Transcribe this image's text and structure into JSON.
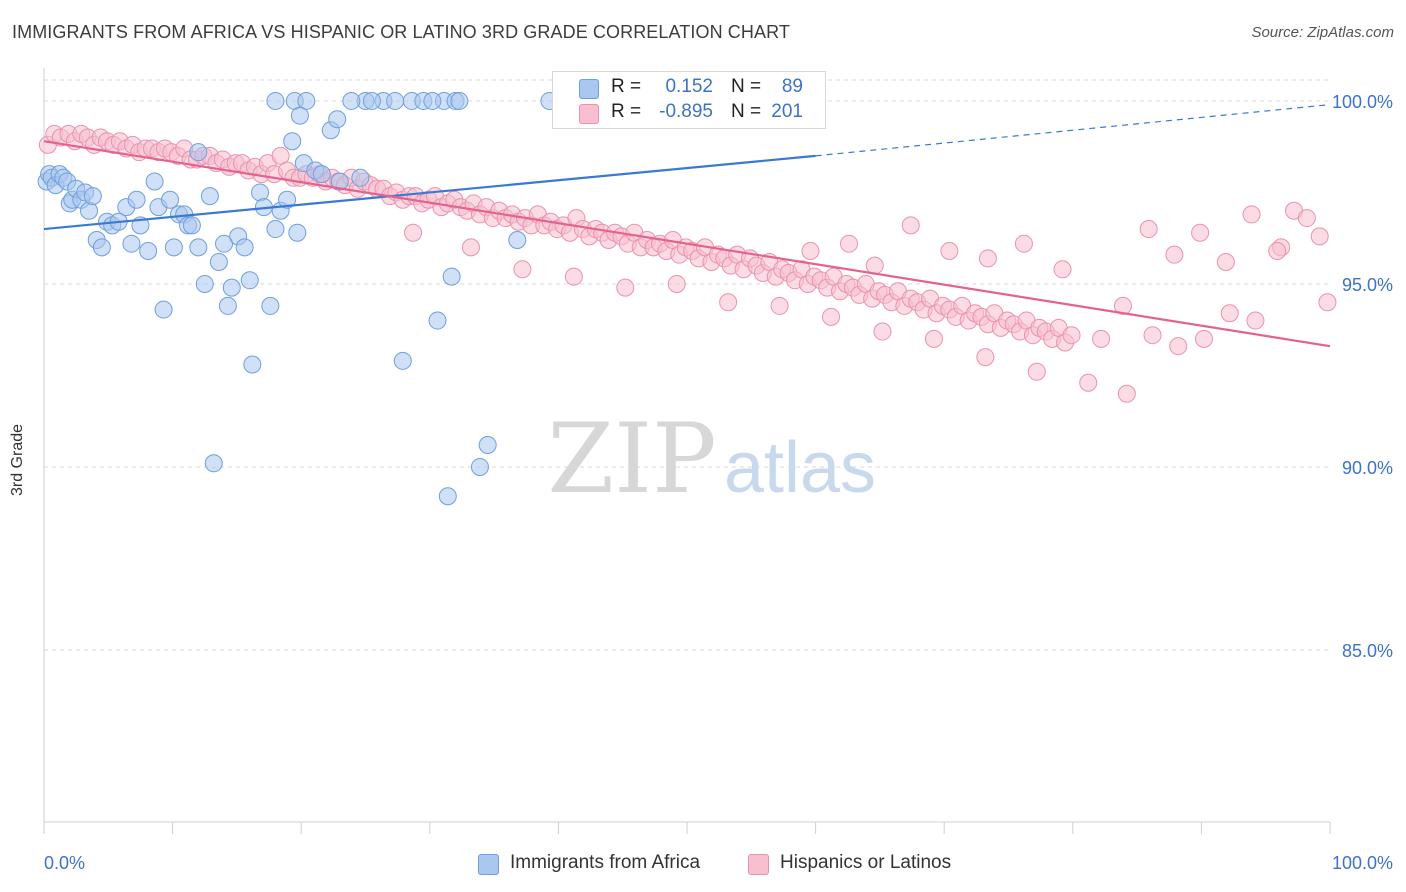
{
  "header": {
    "title": "IMMIGRANTS FROM AFRICA VS HISPANIC OR LATINO 3RD GRADE CORRELATION CHART",
    "source": "Source: ZipAtlas.com"
  },
  "watermark": {
    "zip": "ZIP",
    "atlas": "atlas"
  },
  "legend": {
    "r_label": "R =",
    "n_label": "N =",
    "series": [
      {
        "r": "0.152",
        "n": "89"
      },
      {
        "r": "-0.895",
        "n": "201"
      }
    ]
  },
  "bottom_legend": [
    "Immigrants from Africa",
    "Hispanics or Latinos"
  ],
  "colors": {
    "blue_fill": "#a9c7ef",
    "blue_stroke": "#6e9fde",
    "blue_line": "#3a78d6",
    "pink_fill": "#f7bfd0",
    "pink_stroke": "#ec91ae",
    "pink_line": "#e4628e",
    "axis_text": "#3e72c8",
    "grid": "#d9d9d9"
  },
  "chart_data": {
    "type": "scatter",
    "title": "IMMIGRANTS FROM AFRICA VS HISPANIC OR LATINO 3RD GRADE CORRELATION CHART",
    "ylabel": "3rd Grade",
    "xlabel": "",
    "x_tick_labels": [
      "0.0%",
      "100.0%"
    ],
    "y_tick_labels": [
      "100.0%",
      "95.0%",
      "90.0%",
      "85.0%"
    ],
    "xlim": [
      0,
      100
    ],
    "ylim": [
      80.3,
      100.9
    ],
    "y_ticks": [
      100,
      95,
      90,
      85
    ],
    "grid": true,
    "legend_position": "top-center",
    "series": [
      {
        "name": "Immigrants from Africa",
        "r": 0.152,
        "n": 89,
        "trend": {
          "x0": 0,
          "y0": 96.5,
          "x1": 60,
          "y1": 98.5,
          "dashed_to_x": 100,
          "dashed_to_y": 99.9
        },
        "points": [
          [
            0.2,
            97.8
          ],
          [
            0.4,
            98.0
          ],
          [
            0.6,
            97.9
          ],
          [
            0.9,
            97.7
          ],
          [
            1.2,
            98.0
          ],
          [
            1.5,
            97.9
          ],
          [
            1.8,
            97.8
          ],
          [
            2.0,
            97.2
          ],
          [
            2.2,
            97.3
          ],
          [
            2.5,
            97.6
          ],
          [
            2.9,
            97.3
          ],
          [
            3.2,
            97.5
          ],
          [
            3.5,
            97.0
          ],
          [
            3.8,
            97.4
          ],
          [
            4.1,
            96.2
          ],
          [
            4.5,
            96.0
          ],
          [
            4.9,
            96.7
          ],
          [
            5.3,
            96.6
          ],
          [
            5.8,
            96.7
          ],
          [
            6.4,
            97.1
          ],
          [
            6.8,
            96.1
          ],
          [
            7.2,
            97.3
          ],
          [
            7.5,
            96.6
          ],
          [
            8.1,
            95.9
          ],
          [
            8.6,
            97.8
          ],
          [
            8.9,
            97.1
          ],
          [
            9.3,
            94.3
          ],
          [
            9.8,
            97.3
          ],
          [
            10.1,
            96.0
          ],
          [
            10.5,
            96.9
          ],
          [
            10.9,
            96.9
          ],
          [
            11.2,
            96.6
          ],
          [
            11.5,
            96.6
          ],
          [
            12.0,
            96.0
          ],
          [
            12.5,
            95.0
          ],
          [
            12.9,
            97.4
          ],
          [
            13.2,
            90.1
          ],
          [
            13.6,
            95.6
          ],
          [
            14.0,
            96.1
          ],
          [
            14.3,
            94.4
          ],
          [
            14.6,
            94.9
          ],
          [
            15.1,
            96.3
          ],
          [
            15.6,
            96.0
          ],
          [
            16.0,
            95.1
          ],
          [
            16.2,
            92.8
          ],
          [
            16.8,
            97.5
          ],
          [
            17.1,
            97.1
          ],
          [
            17.6,
            94.4
          ],
          [
            18.0,
            96.5
          ],
          [
            18.4,
            97.0
          ],
          [
            18.9,
            97.3
          ],
          [
            19.3,
            98.9
          ],
          [
            19.7,
            96.4
          ],
          [
            20.2,
            98.3
          ],
          [
            21.1,
            98.1
          ],
          [
            21.6,
            98.0
          ],
          [
            22.3,
            99.2
          ],
          [
            23.0,
            97.8
          ],
          [
            24.6,
            97.9
          ],
          [
            25.0,
            100.0
          ],
          [
            26.4,
            100.0
          ],
          [
            27.3,
            100.0
          ],
          [
            28.6,
            100.0
          ],
          [
            29.5,
            100.0
          ],
          [
            30.6,
            94.0
          ],
          [
            31.1,
            100.0
          ],
          [
            32.0,
            100.0
          ],
          [
            32.3,
            100.0
          ],
          [
            30.2,
            100.0
          ],
          [
            31.7,
            95.2
          ],
          [
            27.9,
            92.9
          ],
          [
            31.4,
            89.2
          ],
          [
            33.9,
            90.0
          ],
          [
            34.5,
            90.6
          ],
          [
            36.8,
            96.2
          ],
          [
            39.3,
            100.0
          ],
          [
            40.2,
            100.0
          ],
          [
            41.5,
            100.0
          ],
          [
            42.5,
            100.0
          ],
          [
            44.5,
            100.0
          ],
          [
            47.7,
            100.0
          ],
          [
            18.0,
            100.0
          ],
          [
            19.5,
            100.0
          ],
          [
            20.4,
            100.0
          ],
          [
            23.9,
            100.0
          ],
          [
            25.5,
            100.0
          ],
          [
            22.8,
            99.5
          ],
          [
            19.9,
            99.6
          ],
          [
            12.0,
            98.6
          ]
        ]
      },
      {
        "name": "Hispanics or Latinos",
        "r": -0.895,
        "n": 201,
        "trend": {
          "x0": 0,
          "y0": 98.9,
          "x1": 100,
          "y1": 93.3
        },
        "points": [
          [
            0.3,
            98.8
          ],
          [
            0.8,
            99.1
          ],
          [
            1.3,
            99.0
          ],
          [
            1.9,
            99.1
          ],
          [
            2.4,
            98.9
          ],
          [
            2.9,
            99.1
          ],
          [
            3.4,
            99.0
          ],
          [
            3.9,
            98.8
          ],
          [
            4.4,
            99.0
          ],
          [
            4.9,
            98.9
          ],
          [
            5.4,
            98.8
          ],
          [
            5.9,
            98.9
          ],
          [
            6.4,
            98.7
          ],
          [
            6.9,
            98.8
          ],
          [
            7.4,
            98.6
          ],
          [
            7.9,
            98.7
          ],
          [
            8.4,
            98.7
          ],
          [
            8.9,
            98.6
          ],
          [
            9.4,
            98.7
          ],
          [
            9.9,
            98.6
          ],
          [
            10.4,
            98.5
          ],
          [
            10.9,
            98.7
          ],
          [
            11.4,
            98.4
          ],
          [
            11.9,
            98.4
          ],
          [
            12.4,
            98.5
          ],
          [
            12.9,
            98.5
          ],
          [
            13.4,
            98.3
          ],
          [
            13.9,
            98.4
          ],
          [
            14.4,
            98.2
          ],
          [
            14.9,
            98.3
          ],
          [
            15.4,
            98.3
          ],
          [
            15.9,
            98.1
          ],
          [
            16.4,
            98.2
          ],
          [
            16.9,
            98.0
          ],
          [
            17.4,
            98.3
          ],
          [
            17.9,
            98.0
          ],
          [
            18.4,
            98.5
          ],
          [
            18.9,
            98.1
          ],
          [
            19.4,
            97.9
          ],
          [
            19.9,
            97.9
          ],
          [
            20.4,
            98.0
          ],
          [
            20.9,
            97.9
          ],
          [
            21.4,
            98.0
          ],
          [
            21.9,
            97.8
          ],
          [
            22.4,
            97.9
          ],
          [
            22.9,
            97.8
          ],
          [
            23.4,
            97.7
          ],
          [
            23.9,
            97.9
          ],
          [
            24.4,
            97.6
          ],
          [
            24.9,
            97.8
          ],
          [
            25.4,
            97.7
          ],
          [
            25.9,
            97.6
          ],
          [
            26.4,
            97.6
          ],
          [
            26.9,
            97.4
          ],
          [
            27.4,
            97.5
          ],
          [
            27.9,
            97.3
          ],
          [
            28.4,
            97.4
          ],
          [
            28.9,
            97.4
          ],
          [
            29.4,
            97.2
          ],
          [
            29.9,
            97.3
          ],
          [
            30.4,
            97.4
          ],
          [
            30.9,
            97.1
          ],
          [
            31.4,
            97.2
          ],
          [
            31.9,
            97.3
          ],
          [
            32.4,
            97.1
          ],
          [
            32.9,
            97.0
          ],
          [
            33.4,
            97.2
          ],
          [
            33.9,
            96.9
          ],
          [
            34.4,
            97.1
          ],
          [
            34.9,
            96.8
          ],
          [
            35.4,
            97.0
          ],
          [
            35.9,
            96.8
          ],
          [
            36.4,
            96.9
          ],
          [
            36.9,
            96.7
          ],
          [
            37.4,
            96.8
          ],
          [
            37.9,
            96.6
          ],
          [
            38.4,
            96.9
          ],
          [
            38.9,
            96.6
          ],
          [
            39.4,
            96.7
          ],
          [
            39.9,
            96.5
          ],
          [
            40.4,
            96.6
          ],
          [
            40.9,
            96.4
          ],
          [
            41.4,
            96.8
          ],
          [
            41.9,
            96.5
          ],
          [
            42.4,
            96.3
          ],
          [
            42.9,
            96.5
          ],
          [
            43.4,
            96.4
          ],
          [
            43.9,
            96.2
          ],
          [
            44.4,
            96.4
          ],
          [
            44.9,
            96.3
          ],
          [
            45.4,
            96.1
          ],
          [
            45.9,
            96.4
          ],
          [
            46.4,
            96.0
          ],
          [
            46.9,
            96.2
          ],
          [
            47.4,
            96.0
          ],
          [
            47.9,
            96.1
          ],
          [
            48.4,
            95.9
          ],
          [
            48.9,
            96.2
          ],
          [
            49.4,
            95.8
          ],
          [
            49.9,
            96.0
          ],
          [
            50.4,
            95.9
          ],
          [
            50.9,
            95.7
          ],
          [
            51.4,
            96.0
          ],
          [
            51.9,
            95.6
          ],
          [
            52.4,
            95.8
          ],
          [
            52.9,
            95.7
          ],
          [
            53.4,
            95.5
          ],
          [
            53.9,
            95.8
          ],
          [
            54.4,
            95.4
          ],
          [
            54.9,
            95.7
          ],
          [
            55.4,
            95.5
          ],
          [
            55.9,
            95.3
          ],
          [
            56.4,
            95.6
          ],
          [
            56.9,
            95.2
          ],
          [
            57.4,
            95.4
          ],
          [
            57.9,
            95.3
          ],
          [
            58.4,
            95.1
          ],
          [
            58.9,
            95.4
          ],
          [
            59.4,
            95.0
          ],
          [
            59.9,
            95.2
          ],
          [
            60.4,
            95.1
          ],
          [
            60.9,
            94.9
          ],
          [
            61.4,
            95.2
          ],
          [
            61.9,
            94.8
          ],
          [
            62.4,
            95.0
          ],
          [
            62.9,
            94.9
          ],
          [
            63.4,
            94.7
          ],
          [
            63.9,
            95.0
          ],
          [
            64.4,
            94.6
          ],
          [
            64.9,
            94.8
          ],
          [
            65.4,
            94.7
          ],
          [
            65.9,
            94.5
          ],
          [
            66.4,
            94.8
          ],
          [
            66.9,
            94.4
          ],
          [
            67.4,
            94.6
          ],
          [
            67.9,
            94.5
          ],
          [
            68.4,
            94.3
          ],
          [
            68.9,
            94.6
          ],
          [
            69.4,
            94.2
          ],
          [
            69.9,
            94.4
          ],
          [
            70.4,
            94.3
          ],
          [
            70.9,
            94.1
          ],
          [
            71.4,
            94.4
          ],
          [
            71.9,
            94.0
          ],
          [
            72.4,
            94.2
          ],
          [
            72.9,
            94.1
          ],
          [
            73.4,
            93.9
          ],
          [
            73.9,
            94.2
          ],
          [
            74.4,
            93.8
          ],
          [
            74.9,
            94.0
          ],
          [
            75.4,
            93.9
          ],
          [
            75.9,
            93.7
          ],
          [
            76.4,
            94.0
          ],
          [
            76.9,
            93.6
          ],
          [
            77.4,
            93.8
          ],
          [
            77.9,
            93.7
          ],
          [
            78.4,
            93.5
          ],
          [
            78.9,
            93.8
          ],
          [
            79.4,
            93.4
          ],
          [
            79.9,
            93.6
          ],
          [
            28.7,
            96.4
          ],
          [
            33.2,
            96.0
          ],
          [
            37.2,
            95.4
          ],
          [
            41.2,
            95.2
          ],
          [
            45.2,
            94.9
          ],
          [
            49.2,
            95.0
          ],
          [
            53.2,
            94.5
          ],
          [
            57.2,
            94.4
          ],
          [
            61.2,
            94.1
          ],
          [
            65.2,
            93.7
          ],
          [
            69.2,
            93.5
          ],
          [
            73.2,
            93.0
          ],
          [
            77.2,
            92.6
          ],
          [
            81.2,
            92.3
          ],
          [
            84.2,
            92.0
          ],
          [
            86.2,
            93.6
          ],
          [
            88.2,
            93.3
          ],
          [
            90.2,
            93.5
          ],
          [
            92.2,
            94.2
          ],
          [
            94.2,
            94.0
          ],
          [
            96.2,
            96.0
          ],
          [
            97.2,
            97.0
          ],
          [
            98.2,
            96.8
          ],
          [
            99.2,
            96.3
          ],
          [
            99.8,
            94.5
          ],
          [
            82.2,
            93.5
          ],
          [
            83.9,
            94.4
          ],
          [
            85.9,
            96.5
          ],
          [
            87.9,
            95.8
          ],
          [
            89.9,
            96.4
          ],
          [
            91.9,
            95.6
          ],
          [
            93.9,
            96.9
          ],
          [
            95.9,
            95.9
          ],
          [
            79.2,
            95.4
          ],
          [
            76.2,
            96.1
          ],
          [
            73.4,
            95.7
          ],
          [
            70.4,
            95.9
          ],
          [
            67.4,
            96.6
          ],
          [
            64.6,
            95.5
          ],
          [
            62.6,
            96.1
          ],
          [
            59.6,
            95.9
          ]
        ]
      }
    ]
  }
}
